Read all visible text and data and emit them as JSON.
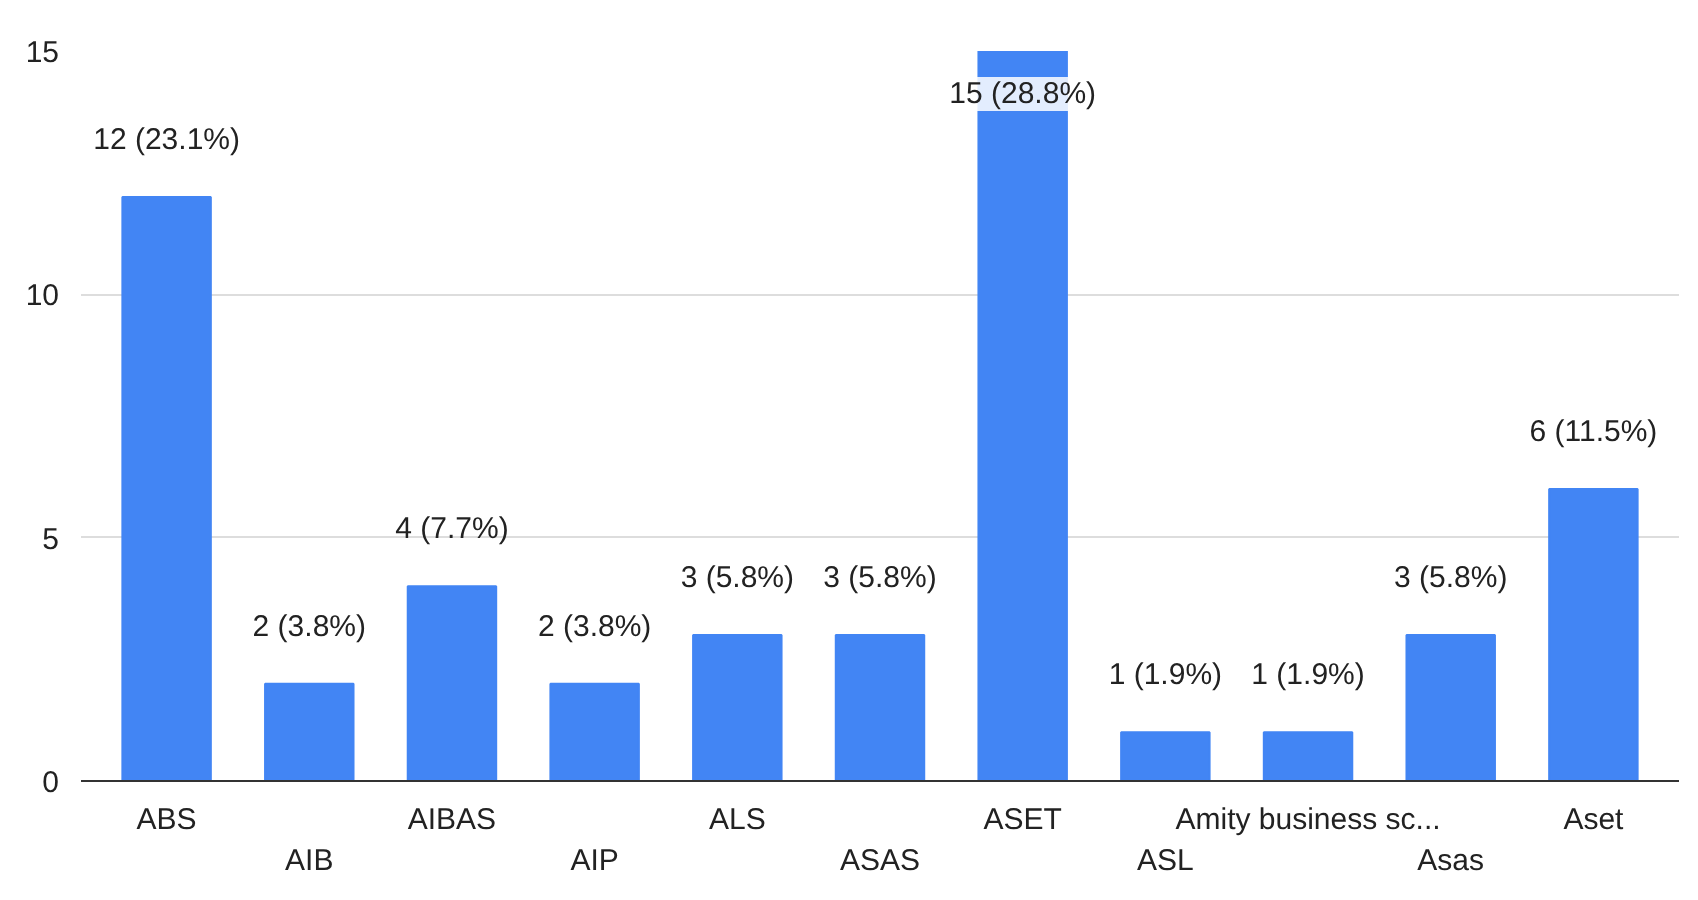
{
  "chart_data": {
    "type": "bar",
    "categories": [
      "ABS",
      "AIB",
      "AIBAS",
      "AIP",
      "ALS",
      "ASAS",
      "ASET",
      "ASL",
      "Amity business sc...",
      "Asas",
      "Aset"
    ],
    "values": [
      12,
      2,
      4,
      2,
      3,
      3,
      15,
      1,
      1,
      3,
      6
    ],
    "value_labels": [
      "12 (23.1%)",
      "2 (3.8%)",
      "4 (7.7%)",
      "2 (3.8%)",
      "3 (5.8%)",
      "3 (5.8%)",
      "15 (28.8%)",
      "1 (1.9%)",
      "1 (1.9%)",
      "3 (5.8%)",
      "6 (11.5%)"
    ],
    "color": "#4285f4",
    "ylim": [
      0,
      15
    ],
    "yticks": [
      0,
      5,
      10,
      15
    ],
    "grid": "y"
  }
}
